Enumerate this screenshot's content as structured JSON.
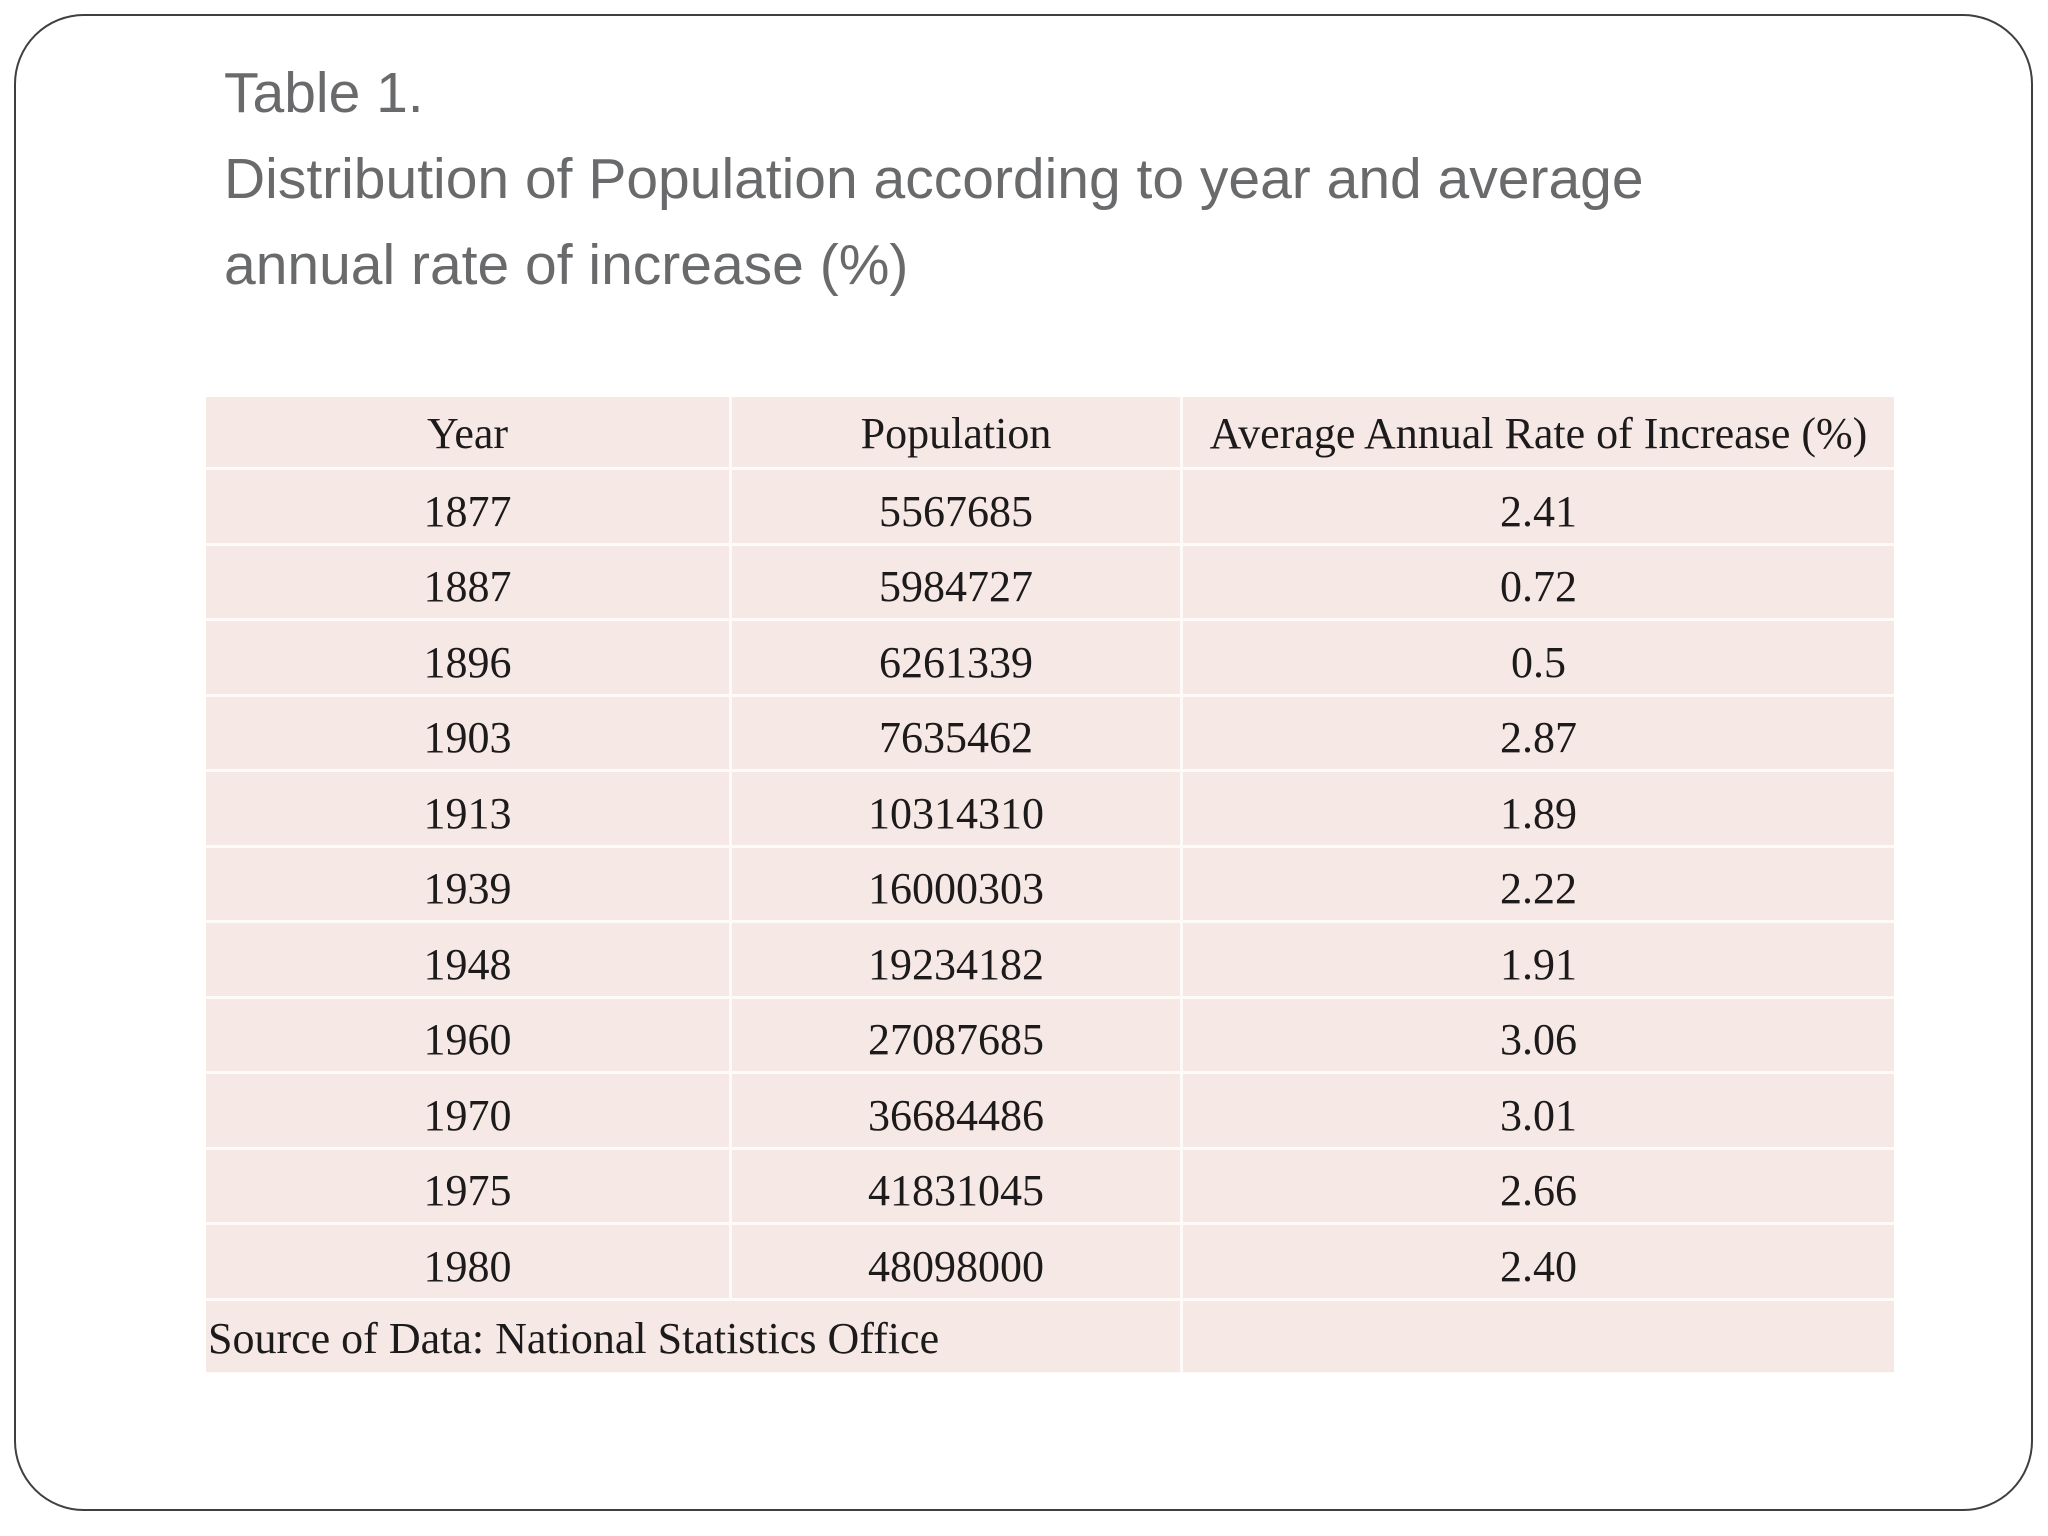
{
  "slide": {
    "title": {
      "line1": "Table 1.",
      "line2": "Distribution of Population according to year and average",
      "line3": "annual rate of increase (%)"
    },
    "table": {
      "headers": [
        "Year",
        "Population",
        "Average Annual Rate of Increase (%)"
      ],
      "rows": [
        {
          "year": "1877",
          "population": "5567685",
          "rate": "2.41"
        },
        {
          "year": "1887",
          "population": "5984727",
          "rate": "0.72"
        },
        {
          "year": "1896",
          "population": "6261339",
          "rate": "0.5"
        },
        {
          "year": "1903",
          "population": "7635462",
          "rate": "2.87"
        },
        {
          "year": "1913",
          "population": "10314310",
          "rate": "1.89"
        },
        {
          "year": "1939",
          "population": "16000303",
          "rate": "2.22"
        },
        {
          "year": "1948",
          "population": "19234182",
          "rate": "1.91"
        },
        {
          "year": "1960",
          "population": "27087685",
          "rate": "3.06"
        },
        {
          "year": "1970",
          "population": "36684486",
          "rate": "3.01"
        },
        {
          "year": "1975",
          "population": "41831045",
          "rate": "2.66"
        },
        {
          "year": "1980",
          "population": "48098000",
          "rate": "2.40"
        }
      ],
      "source_note": "Source of Data: National Statistics Office"
    },
    "colors": {
      "table_fill": "#f6e8e5",
      "divider": "#fdfaf8",
      "title_text": "#696a6c",
      "table_text": "#1c1a1a",
      "frame_border": "#3f3f3f"
    },
    "chart_data": {
      "type": "table",
      "title": "Table 1. Distribution of Population according to year and average annual rate of increase (%)",
      "columns": [
        "Year",
        "Population",
        "Average Annual Rate of Increase (%)"
      ],
      "x": [
        1877,
        1887,
        1896,
        1903,
        1913,
        1939,
        1948,
        1960,
        1970,
        1975,
        1980
      ],
      "series": [
        {
          "name": "Population",
          "values": [
            5567685,
            5984727,
            6261339,
            7635462,
            10314310,
            16000303,
            19234182,
            27087685,
            36684486,
            41831045,
            48098000
          ]
        },
        {
          "name": "Average Annual Rate of Increase (%)",
          "values": [
            2.41,
            0.72,
            0.5,
            2.87,
            1.89,
            2.22,
            1.91,
            3.06,
            3.01,
            2.66,
            2.4
          ]
        }
      ]
    }
  }
}
